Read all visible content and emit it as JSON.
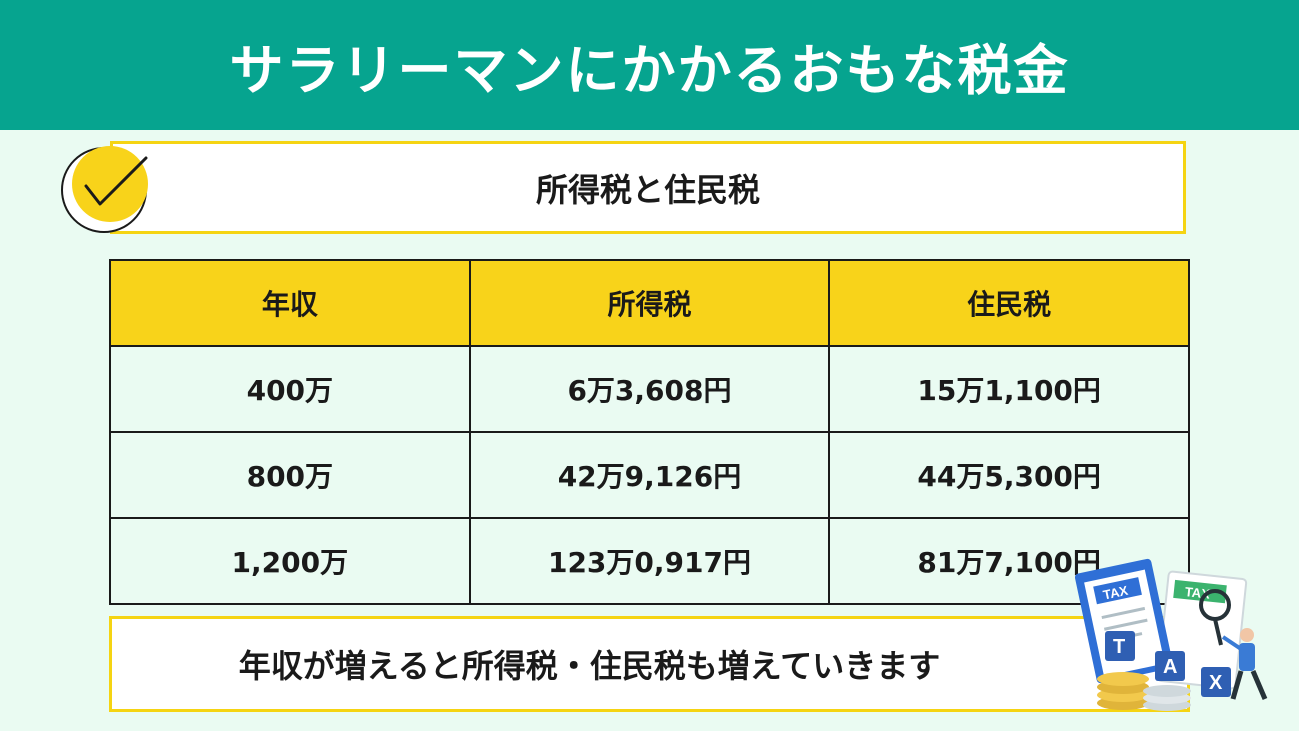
{
  "header": {
    "title": "サラリーマンにかかるおもな税金"
  },
  "subtitle": "所得税と住民税",
  "table": {
    "headers": [
      "年収",
      "所得税",
      "住民税"
    ],
    "rows": [
      [
        "400万",
        "6万3,608円",
        "15万1,100円"
      ],
      [
        "800万",
        "42万9,126円",
        "44万5,300円"
      ],
      [
        "1,200万",
        "123万0,917円",
        "81万7,100円"
      ]
    ]
  },
  "footer": "年収が増えると所得税・住民税も増えていきます",
  "illustration": {
    "doc_front_label": "TAX",
    "doc_back_label": "TAX",
    "blocks": [
      "T",
      "A",
      "X"
    ]
  },
  "colors": {
    "banner": "#06a48f",
    "background": "#eafbf2",
    "accent_yellow": "#f8d31a",
    "border_yellow": "#f5d412"
  }
}
